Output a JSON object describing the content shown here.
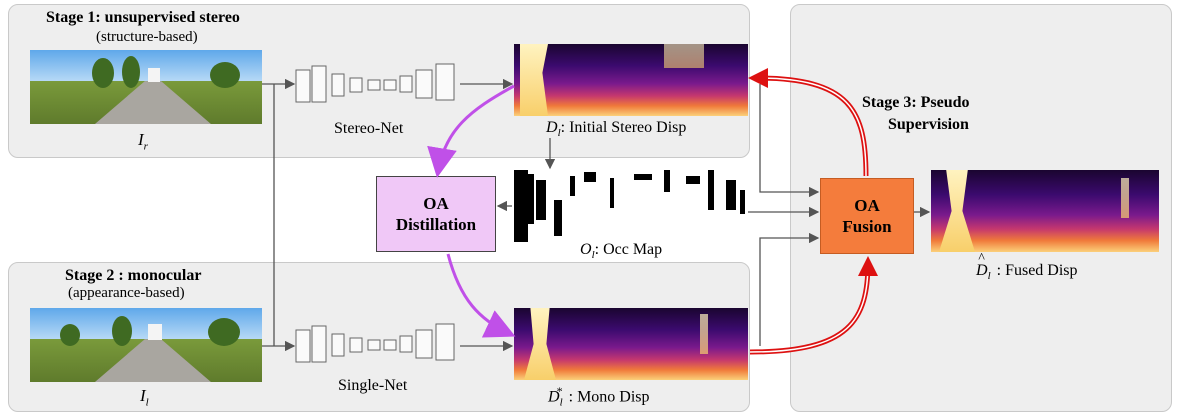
{
  "stage1": {
    "title": "Stage 1: unsupervised stereo",
    "subtitle": "(structure-based)"
  },
  "stage2": {
    "title": "Stage 2 : monocular",
    "subtitle": "(appearance-based)"
  },
  "stage3": {
    "title_line1": "Stage 3: Pseudo",
    "title_line2": "Supervision"
  },
  "inputs": {
    "right_image_label": "I",
    "right_image_sub": "r",
    "left_image_label": "I",
    "left_image_sub": "l"
  },
  "networks": {
    "stereo_net": "Stereo-Net",
    "single_net": "Single-Net"
  },
  "outputs": {
    "initial_disp": {
      "symbol": "D",
      "sub": "l",
      "text": ": Initial Stereo Disp"
    },
    "occ_map": {
      "symbol": "O",
      "sub": "l",
      "text": ": Occ Map"
    },
    "mono_disp": {
      "symbol": "D",
      "sub": "l",
      "sup": "*",
      "text": ": Mono Disp"
    },
    "fused_disp": {
      "symbol": "D",
      "sub": "l",
      "hat": "^",
      "text": ": Fused Disp"
    }
  },
  "modules": {
    "distillation": {
      "line1": "OA",
      "line2": "Distillation",
      "fill": "#f0c8f7",
      "stroke": "#444444"
    },
    "fusion": {
      "line1": "OA",
      "line2": "Fusion",
      "fill": "#f47c3c",
      "stroke": "#c55c22"
    }
  },
  "colors": {
    "magenta_arrow": "#c050e8",
    "red_arrow": "#dd1111",
    "gray_arrow": "#555555"
  }
}
